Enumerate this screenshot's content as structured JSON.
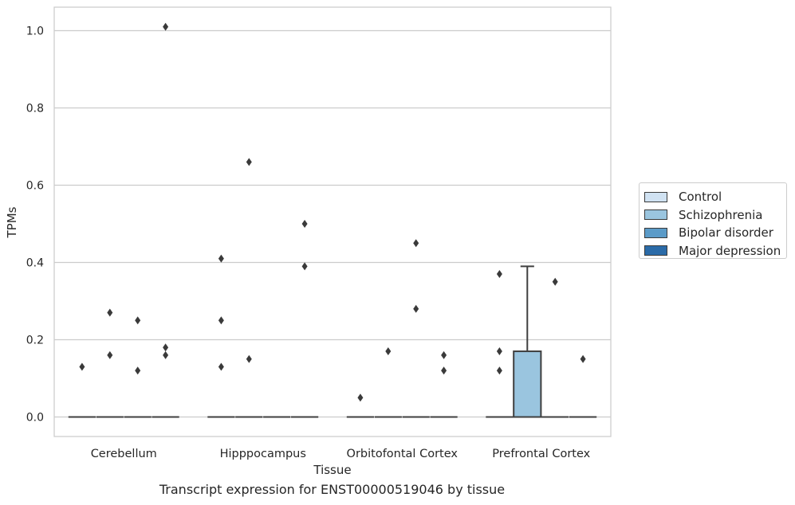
{
  "chart_data": {
    "type": "box",
    "xlabel": "Tissue",
    "ylabel": "TPMs",
    "ylim": [
      -0.05,
      1.06
    ],
    "yticks": [
      0.0,
      0.2,
      0.4,
      0.6,
      0.8,
      1.0
    ],
    "ytick_labels": [
      "0.0",
      "0.2",
      "0.4",
      "0.6",
      "0.8",
      "1.0"
    ],
    "grid": "horizontal",
    "legend_position": "right",
    "categories": [
      "Cerebellum",
      "Hipppocampus",
      "Orbitofontal Cortex",
      "Prefrontal Cortex"
    ],
    "series": [
      {
        "name": "Control",
        "color": "#d0e2f2",
        "boxes": [
          {
            "q1": 0,
            "median": 0,
            "q3": 0,
            "whisker_low": 0,
            "whisker_high": 0,
            "outliers": [
              0.13
            ]
          },
          {
            "q1": 0,
            "median": 0,
            "q3": 0,
            "whisker_low": 0,
            "whisker_high": 0,
            "outliers": [
              0.13,
              0.25,
              0.41
            ]
          },
          {
            "q1": 0,
            "median": 0,
            "q3": 0,
            "whisker_low": 0,
            "whisker_high": 0,
            "outliers": [
              0.05
            ]
          },
          {
            "q1": 0,
            "median": 0,
            "q3": 0,
            "whisker_low": 0,
            "whisker_high": 0,
            "outliers": [
              0.12,
              0.17,
              0.37
            ]
          }
        ]
      },
      {
        "name": "Schizophrenia",
        "color": "#9ac5df",
        "boxes": [
          {
            "q1": 0,
            "median": 0,
            "q3": 0,
            "whisker_low": 0,
            "whisker_high": 0,
            "outliers": [
              0.16,
              0.27
            ]
          },
          {
            "q1": 0,
            "median": 0,
            "q3": 0,
            "whisker_low": 0,
            "whisker_high": 0,
            "outliers": [
              0.66,
              0.15
            ]
          },
          {
            "q1": 0,
            "median": 0,
            "q3": 0,
            "whisker_low": 0,
            "whisker_high": 0,
            "outliers": [
              0.17
            ]
          },
          {
            "q1": 0,
            "median": 0,
            "q3": 0.17,
            "whisker_low": 0,
            "whisker_high": 0.39,
            "outliers": []
          }
        ]
      },
      {
        "name": "Bipolar disorder",
        "color": "#5b9bc8",
        "boxes": [
          {
            "q1": 0,
            "median": 0,
            "q3": 0,
            "whisker_low": 0,
            "whisker_high": 0,
            "outliers": [
              0.12,
              0.25
            ]
          },
          {
            "q1": 0,
            "median": 0,
            "q3": 0,
            "whisker_low": 0,
            "whisker_high": 0,
            "outliers": []
          },
          {
            "q1": 0,
            "median": 0,
            "q3": 0,
            "whisker_low": 0,
            "whisker_high": 0,
            "outliers": [
              0.28,
              0.45
            ]
          },
          {
            "q1": 0,
            "median": 0,
            "q3": 0,
            "whisker_low": 0,
            "whisker_high": 0,
            "outliers": [
              0.35
            ]
          }
        ]
      },
      {
        "name": "Major depression",
        "color": "#2b6ba8",
        "boxes": [
          {
            "q1": 0,
            "median": 0,
            "q3": 0,
            "whisker_low": 0,
            "whisker_high": 0,
            "outliers": [
              0.16,
              0.18,
              1.01
            ]
          },
          {
            "q1": 0,
            "median": 0,
            "q3": 0,
            "whisker_low": 0,
            "whisker_high": 0,
            "outliers": [
              0.39,
              0.5
            ]
          },
          {
            "q1": 0,
            "median": 0,
            "q3": 0,
            "whisker_low": 0,
            "whisker_high": 0,
            "outliers": [
              0.12,
              0.16
            ]
          },
          {
            "q1": 0,
            "median": 0,
            "q3": 0,
            "whisker_low": 0,
            "whisker_high": 0,
            "outliers": [
              0.15
            ]
          }
        ]
      }
    ],
    "caption": "Transcript expression for ENST00000519046 by tissue"
  }
}
